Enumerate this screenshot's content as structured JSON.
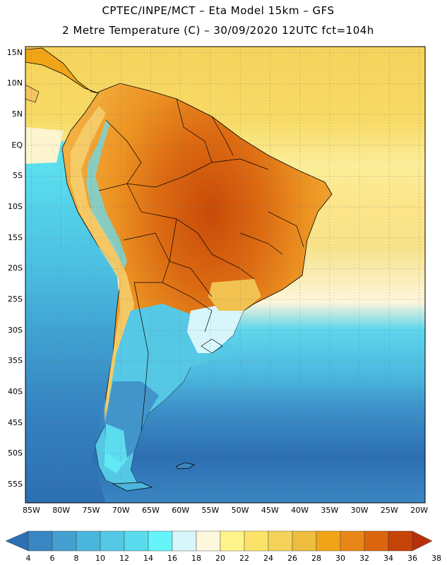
{
  "header": {
    "line1": "CPTEC/INPE/MCT –  Eta Model 15km – GFS",
    "line2": "2 Metre Temperature (C) – 30/09/2020 12UTC fct=104h"
  },
  "map": {
    "lat_labels": [
      "15N",
      "10N",
      "5N",
      "EQ",
      "5S",
      "10S",
      "15S",
      "20S",
      "25S",
      "30S",
      "35S",
      "40S",
      "45S",
      "50S",
      "55S"
    ],
    "lon_labels": [
      "85W",
      "80W",
      "75W",
      "70W",
      "65W",
      "60W",
      "55W",
      "50W",
      "45W",
      "40W",
      "35W",
      "30W",
      "25W",
      "20W"
    ],
    "lat_range": [
      16,
      -58
    ],
    "lon_range": [
      -86,
      -19
    ]
  },
  "colorbar": {
    "values": [
      "4",
      "6",
      "8",
      "10",
      "12",
      "14",
      "16",
      "18",
      "20",
      "22",
      "24",
      "26",
      "28",
      "30",
      "32",
      "34",
      "36",
      "38"
    ],
    "colors": [
      "#2c6fb2",
      "#3a86c2",
      "#45a0d0",
      "#4bb6dd",
      "#55c8e6",
      "#5bdcee",
      "#66f4fb",
      "#d7f6fb",
      "#fdf8dc",
      "#fff48c",
      "#fbe36a",
      "#f5d35a",
      "#eebc3e",
      "#f1a418",
      "#e88718",
      "#dc6510",
      "#c74408",
      "#b8300a"
    ]
  },
  "legend_unit": "C"
}
